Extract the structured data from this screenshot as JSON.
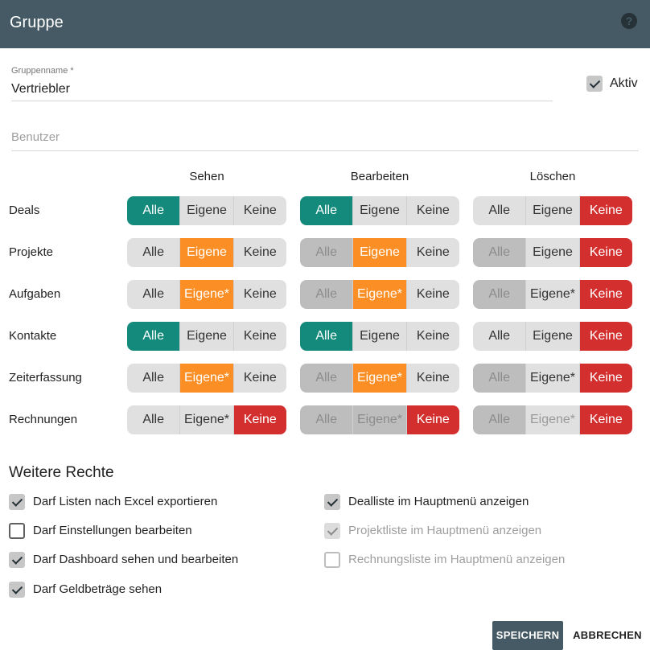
{
  "dialog": {
    "title": "Gruppe",
    "help_icon": "?"
  },
  "form": {
    "group_name_label": "Gruppenname *",
    "group_name_value": "Vertriebler",
    "active_label": "Aktiv",
    "active_checked": true,
    "users_placeholder": "Benutzer"
  },
  "matrix": {
    "columns": [
      "Sehen",
      "Bearbeiten",
      "Löschen"
    ],
    "rows": [
      {
        "label": "Deals",
        "groups": [
          {
            "opts": [
              "Alle",
              "Eigene",
              "Keine"
            ],
            "selected": 0,
            "disabled": []
          },
          {
            "opts": [
              "Alle",
              "Eigene",
              "Keine"
            ],
            "selected": 0,
            "disabled": []
          },
          {
            "opts": [
              "Alle",
              "Eigene",
              "Keine"
            ],
            "selected": 2,
            "disabled": []
          }
        ]
      },
      {
        "label": "Projekte",
        "groups": [
          {
            "opts": [
              "Alle",
              "Eigene",
              "Keine"
            ],
            "selected": 1,
            "disabled": []
          },
          {
            "opts": [
              "Alle",
              "Eigene",
              "Keine"
            ],
            "selected": 1,
            "disabled": [
              0
            ]
          },
          {
            "opts": [
              "Alle",
              "Eigene",
              "Keine"
            ],
            "selected": 2,
            "disabled": [
              0
            ]
          }
        ]
      },
      {
        "label": "Aufgaben",
        "groups": [
          {
            "opts": [
              "Alle",
              "Eigene*",
              "Keine"
            ],
            "selected": 1,
            "disabled": []
          },
          {
            "opts": [
              "Alle",
              "Eigene*",
              "Keine"
            ],
            "selected": 1,
            "disabled": [
              0
            ]
          },
          {
            "opts": [
              "Alle",
              "Eigene*",
              "Keine"
            ],
            "selected": 2,
            "disabled": [
              0
            ]
          }
        ]
      },
      {
        "label": "Kontakte",
        "groups": [
          {
            "opts": [
              "Alle",
              "Eigene",
              "Keine"
            ],
            "selected": 0,
            "disabled": []
          },
          {
            "opts": [
              "Alle",
              "Eigene",
              "Keine"
            ],
            "selected": 0,
            "disabled": []
          },
          {
            "opts": [
              "Alle",
              "Eigene",
              "Keine"
            ],
            "selected": 2,
            "disabled": []
          }
        ]
      },
      {
        "label": "Zeiterfassung",
        "groups": [
          {
            "opts": [
              "Alle",
              "Eigene*",
              "Keine"
            ],
            "selected": 1,
            "disabled": []
          },
          {
            "opts": [
              "Alle",
              "Eigene*",
              "Keine"
            ],
            "selected": 1,
            "disabled": [
              0
            ]
          },
          {
            "opts": [
              "Alle",
              "Eigene*",
              "Keine"
            ],
            "selected": 2,
            "disabled": [
              0
            ]
          }
        ]
      },
      {
        "label": "Rechnungen",
        "groups": [
          {
            "opts": [
              "Alle",
              "Eigene*",
              "Keine"
            ],
            "selected": 2,
            "disabled": []
          },
          {
            "opts": [
              "Alle",
              "Eigene*",
              "Keine"
            ],
            "selected": 2,
            "disabled": [
              0,
              1
            ]
          },
          {
            "opts": [
              "Alle",
              "Eigene*",
              "Keine"
            ],
            "selected": 2,
            "disabled": [
              0,
              1
            ]
          }
        ]
      }
    ]
  },
  "permissions": {
    "title": "Weitere Rechte",
    "left": [
      {
        "label": "Darf Listen nach Excel exportieren",
        "checked": true,
        "disabled": false
      },
      {
        "label": "Darf Einstellungen bearbeiten",
        "checked": false,
        "disabled": false
      },
      {
        "label": "Darf Dashboard sehen und bearbeiten",
        "checked": true,
        "disabled": false
      },
      {
        "label": "Darf Geldbeträge sehen",
        "checked": true,
        "disabled": false
      }
    ],
    "right": [
      {
        "label": "Dealliste im Hauptmenü anzeigen",
        "checked": true,
        "disabled": false
      },
      {
        "label": "Projektliste im Hauptmenü anzeigen",
        "checked": true,
        "disabled": true
      },
      {
        "label": "Rechnungsliste im Hauptmenü anzeigen",
        "checked": false,
        "disabled": true
      }
    ]
  },
  "actions": {
    "save_label": "SPEICHERN",
    "cancel_label": "ABBRECHEN"
  },
  "colors": {
    "header": "#455a64",
    "selected_all": "#138a7c",
    "selected_own": "#fb8f25",
    "selected_none": "#d32f2f"
  }
}
